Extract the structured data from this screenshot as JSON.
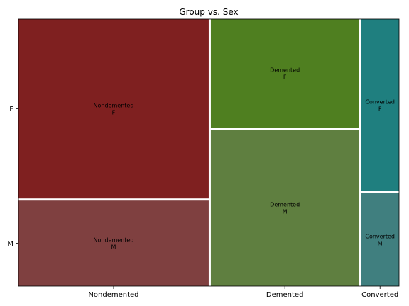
{
  "chart_data": {
    "type": "mosaic",
    "title": "Group vs. Sex",
    "x_variable": "Group",
    "y_variable": "Sex",
    "categories": [
      "Nondemented",
      "Demented",
      "Converted"
    ],
    "y_categories": [
      "F",
      "M"
    ],
    "column_fractions": [
      0.5,
      0.389,
      0.1
    ],
    "cells": [
      {
        "group": "Nondemented",
        "sex": "F",
        "fraction_within_group": 0.677,
        "label": [
          "Nondemented",
          "F"
        ],
        "color": "#7f2020"
      },
      {
        "group": "Nondemented",
        "sex": "M",
        "fraction_within_group": 0.323,
        "label": [
          "Nondemented",
          "M"
        ],
        "color": "#7f4040"
      },
      {
        "group": "Demented",
        "sex": "F",
        "fraction_within_group": 0.41,
        "label": [
          "Demented",
          "F"
        ],
        "color": "#4f7f20"
      },
      {
        "group": "Demented",
        "sex": "M",
        "fraction_within_group": 0.59,
        "label": [
          "Demented",
          "M"
        ],
        "color": "#5f7f40"
      },
      {
        "group": "Converted",
        "sex": "F",
        "fraction_within_group": 0.649,
        "label": [
          "Converted",
          "F"
        ],
        "color": "#1f7f7f"
      },
      {
        "group": "Converted",
        "sex": "M",
        "fraction_within_group": 0.351,
        "label": [
          "Converted",
          "M"
        ],
        "color": "#407f7f"
      }
    ]
  }
}
